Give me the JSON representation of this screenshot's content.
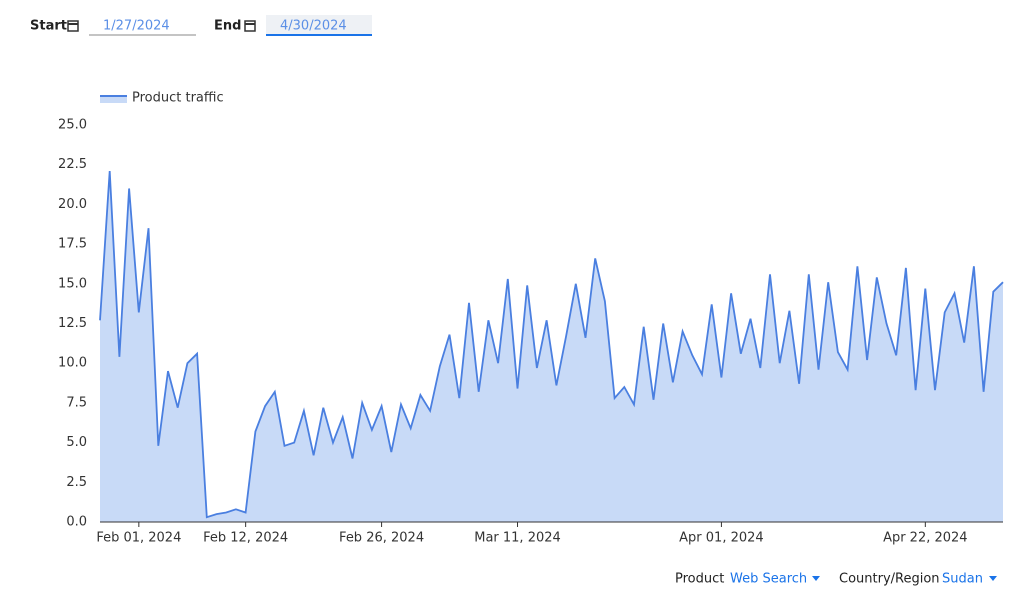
{
  "controls": {
    "start_label": "Start",
    "start_date": "1/27/2024",
    "end_label": "End",
    "end_date": "4/30/2024",
    "product_label": "Product",
    "product_value": "Web Search",
    "region_label": "Country/Region",
    "region_value": "Sudan"
  },
  "chart_data": {
    "type": "area",
    "x": [
      "2024-01-28",
      "2024-01-29",
      "2024-01-30",
      "2024-01-31",
      "2024-02-01",
      "2024-02-02",
      "2024-02-03",
      "2024-02-04",
      "2024-02-05",
      "2024-02-06",
      "2024-02-07",
      "2024-02-08",
      "2024-02-09",
      "2024-02-10",
      "2024-02-11",
      "2024-02-12",
      "2024-02-13",
      "2024-02-14",
      "2024-02-15",
      "2024-02-16",
      "2024-02-17",
      "2024-02-18",
      "2024-02-19",
      "2024-02-20",
      "2024-02-21",
      "2024-02-22",
      "2024-02-23",
      "2024-02-24",
      "2024-02-25",
      "2024-02-26",
      "2024-02-27",
      "2024-02-28",
      "2024-02-29",
      "2024-03-01",
      "2024-03-02",
      "2024-03-03",
      "2024-03-04",
      "2024-03-05",
      "2024-03-06",
      "2024-03-07",
      "2024-03-08",
      "2024-03-09",
      "2024-03-10",
      "2024-03-11",
      "2024-03-12",
      "2024-03-13",
      "2024-03-14",
      "2024-03-15",
      "2024-03-16",
      "2024-03-17",
      "2024-03-18",
      "2024-03-19",
      "2024-03-20",
      "2024-03-21",
      "2024-03-22",
      "2024-03-23",
      "2024-03-24",
      "2024-03-25",
      "2024-03-26",
      "2024-03-27",
      "2024-03-28",
      "2024-03-29",
      "2024-03-30",
      "2024-03-31",
      "2024-04-01",
      "2024-04-02",
      "2024-04-03",
      "2024-04-04",
      "2024-04-05",
      "2024-04-06",
      "2024-04-07",
      "2024-04-08",
      "2024-04-09",
      "2024-04-10",
      "2024-04-11",
      "2024-04-12",
      "2024-04-13",
      "2024-04-14",
      "2024-04-15",
      "2024-04-16",
      "2024-04-17",
      "2024-04-18",
      "2024-04-19",
      "2024-04-20",
      "2024-04-21",
      "2024-04-22",
      "2024-04-23",
      "2024-04-24",
      "2024-04-25",
      "2024-04-26",
      "2024-04-27",
      "2024-04-28",
      "2024-04-29",
      "2024-04-30"
    ],
    "series": [
      {
        "name": "Product traffic",
        "color": "#4a7fe0",
        "fill": "#c8daf7",
        "values": [
          12.7,
          22.1,
          10.4,
          21.0,
          13.2,
          18.5,
          4.8,
          9.5,
          7.2,
          10.0,
          10.6,
          0.3,
          0.5,
          0.6,
          0.8,
          0.6,
          5.7,
          7.3,
          8.2,
          4.8,
          5.0,
          7.0,
          4.2,
          7.2,
          5.0,
          6.6,
          4.0,
          7.5,
          5.8,
          7.3,
          4.4,
          7.4,
          5.9,
          8.0,
          7.0,
          9.8,
          11.8,
          7.8,
          13.8,
          8.2,
          12.7,
          10.0,
          15.3,
          8.4,
          14.9,
          9.7,
          12.7,
          8.6,
          11.7,
          15.0,
          11.6,
          16.6,
          13.9,
          7.8,
          8.5,
          7.4,
          12.3,
          7.7,
          12.5,
          8.8,
          12.0,
          10.5,
          9.3,
          13.7,
          9.1,
          14.4,
          10.6,
          12.8,
          9.7,
          15.6,
          10.0,
          13.3,
          8.7,
          15.6,
          9.6,
          15.1,
          10.7,
          9.6,
          16.1,
          10.2,
          15.4,
          12.5,
          10.5,
          16.0,
          8.3,
          14.7,
          8.3,
          13.2,
          14.4,
          11.3,
          16.1,
          8.2,
          14.5,
          15.1
        ]
      }
    ],
    "xlim": [
      "2024-01-28",
      "2024-04-30"
    ],
    "xticks": [
      {
        "value": "2024-02-01",
        "label": "Feb 01, 2024"
      },
      {
        "value": "2024-02-12",
        "label": "Feb 12, 2024"
      },
      {
        "value": "2024-02-26",
        "label": "Feb 26, 2024"
      },
      {
        "value": "2024-03-11",
        "label": "Mar 11, 2024"
      },
      {
        "value": "2024-04-01",
        "label": "Apr 01, 2024"
      },
      {
        "value": "2024-04-22",
        "label": "Apr 22, 2024"
      }
    ],
    "ylim": [
      0,
      25
    ],
    "yticks": [
      {
        "value": 0,
        "label": "0.0"
      },
      {
        "value": 2.5,
        "label": "2.5"
      },
      {
        "value": 5,
        "label": "5.0"
      },
      {
        "value": 7.5,
        "label": "7.5"
      },
      {
        "value": 10,
        "label": "10.0"
      },
      {
        "value": 12.5,
        "label": "12.5"
      },
      {
        "value": 15,
        "label": "15.0"
      },
      {
        "value": 17.5,
        "label": "17.5"
      },
      {
        "value": 20,
        "label": "20.0"
      },
      {
        "value": 22.5,
        "label": "22.5"
      },
      {
        "value": 25,
        "label": "25.0"
      }
    ]
  }
}
